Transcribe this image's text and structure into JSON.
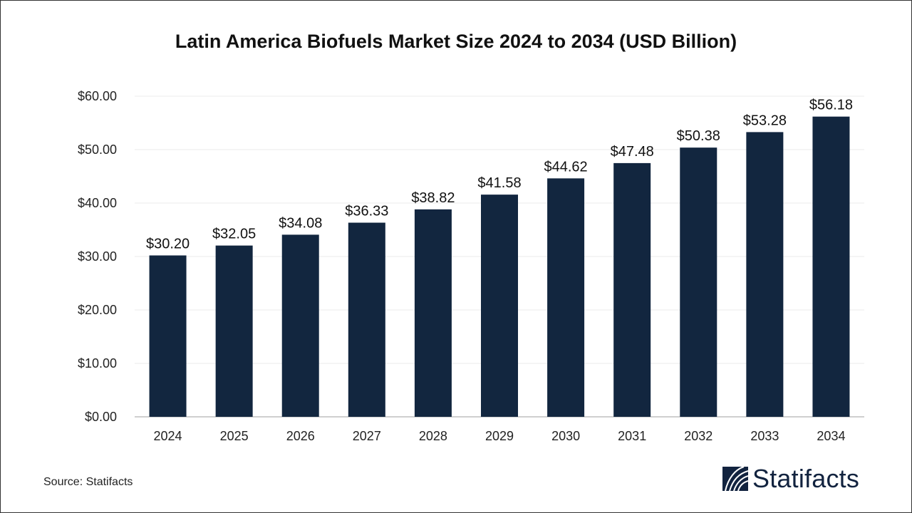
{
  "chart_data": {
    "type": "bar",
    "title": "Latin America Biofuels Market Size 2024 to 2034  (USD Billion)",
    "categories": [
      "2024",
      "2025",
      "2026",
      "2027",
      "2028",
      "2029",
      "2030",
      "2031",
      "2032",
      "2033",
      "2034"
    ],
    "values": [
      30.2,
      32.05,
      34.08,
      36.33,
      38.82,
      41.58,
      44.62,
      47.48,
      50.38,
      53.28,
      56.18
    ],
    "data_labels": [
      "$30.20",
      "$32.05",
      "$34.08",
      "$36.33",
      "$38.82",
      "$41.58",
      "$44.62",
      "$47.48",
      "$50.38",
      "$53.28",
      "$56.18"
    ],
    "y_ticks": [
      "$0.00",
      "$10.00",
      "$20.00",
      "$30.00",
      "$40.00",
      "$50.00",
      "$60.00"
    ],
    "ylim": [
      0,
      60
    ],
    "xlabel": "",
    "ylabel": "",
    "grid": true,
    "bar_color": "#12263f"
  },
  "source": "Source: Statifacts",
  "logo": "Statifacts"
}
